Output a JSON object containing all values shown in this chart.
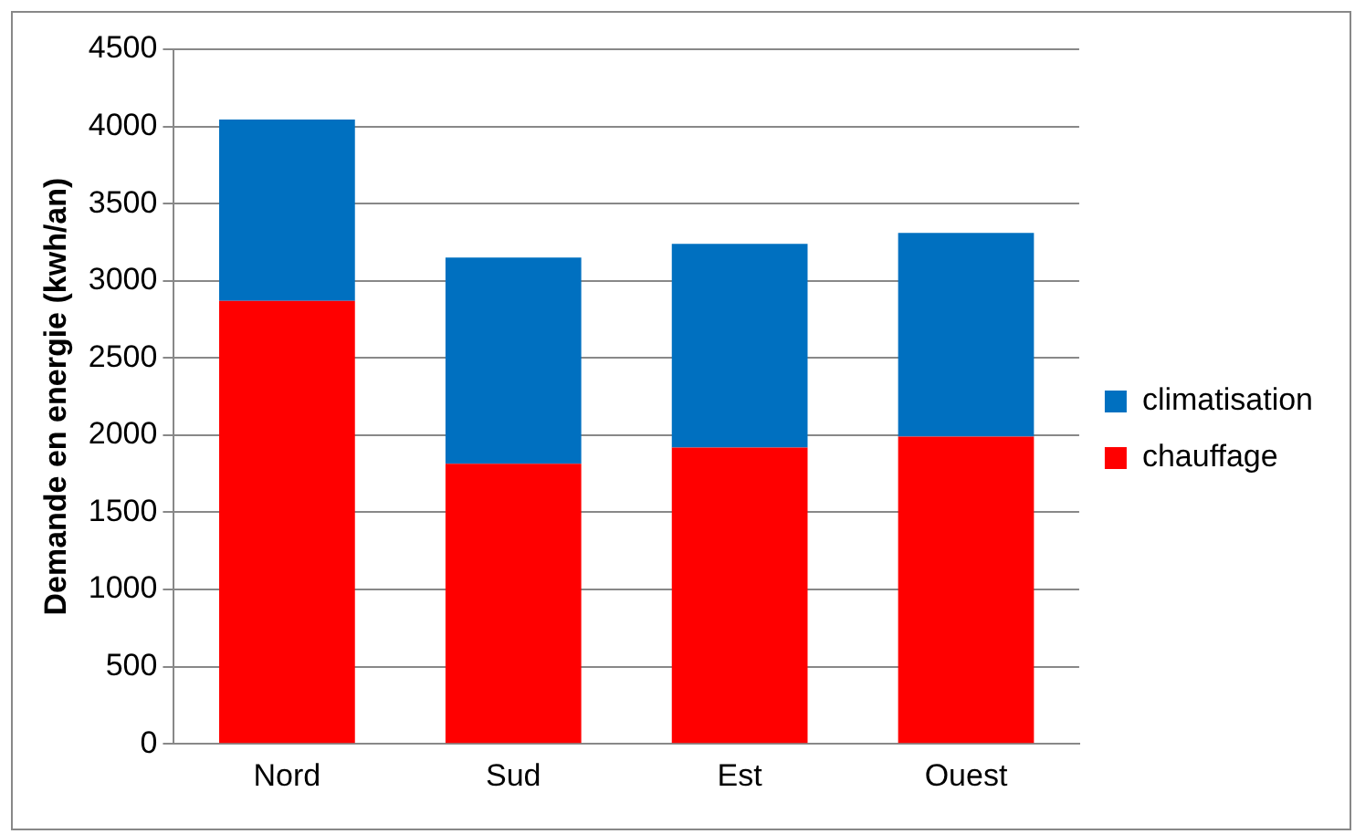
{
  "chart_data": {
    "type": "bar",
    "stacked": true,
    "ylabel": "Demande en energie (kwh/an)",
    "categories": [
      "Nord",
      "Sud",
      "Est",
      "Ouest"
    ],
    "series": [
      {
        "name": "chauffage",
        "color": "#ff0000",
        "values": [
          2870,
          1815,
          1920,
          1990
        ]
      },
      {
        "name": "climatisation",
        "color": "#0070c0",
        "values": [
          1175,
          1335,
          1320,
          1320
        ]
      }
    ],
    "ylim": [
      0,
      4500
    ],
    "yticks": [
      0,
      500,
      1000,
      1500,
      2000,
      2500,
      3000,
      3500,
      4000,
      4500
    ],
    "grid": "y",
    "legend": "right"
  }
}
